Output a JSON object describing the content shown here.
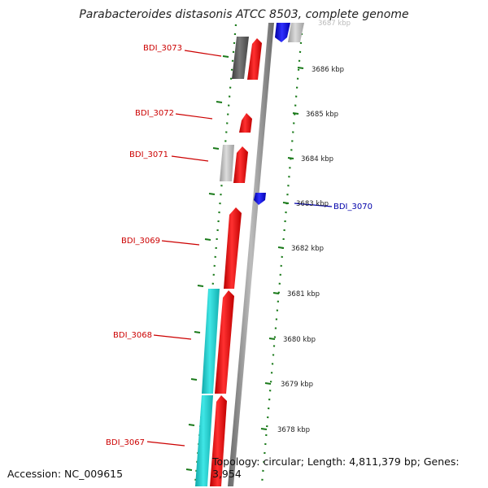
{
  "title": "Parabacteroides distasonis ATCC 8503, complete genome",
  "footer": {
    "accession": "Accession: NC_009615",
    "topology": "Topology: circular; Length: 4,811,379 bp; Genes: 3,954"
  },
  "scale_labels": [
    "3687 kbp",
    "3686 kbp",
    "3685 kbp",
    "3684 kbp",
    "3683 kbp",
    "3682 kbp",
    "3681 kbp",
    "3680 kbp",
    "3679 kbp",
    "3678 kbp"
  ],
  "gene_labels": [
    {
      "name": "BDI_3073",
      "color": "#cc0000"
    },
    {
      "name": "BDI_3072",
      "color": "#cc0000"
    },
    {
      "name": "BDI_3071",
      "color": "#cc0000"
    },
    {
      "name": "BDI_3070",
      "color": "#0000aa"
    },
    {
      "name": "BDI_3069",
      "color": "#cc0000"
    },
    {
      "name": "BDI_3068",
      "color": "#cc0000"
    },
    {
      "name": "BDI_3067",
      "color": "#cc0000"
    }
  ],
  "colors": {
    "forward_gene": "#ee1111",
    "reverse_gene": "#1a1ad9",
    "rna_feature": "#1ec8c8",
    "gray_feature": "#bbbbbb",
    "dark_feature": "#666666",
    "backbone": "#888888",
    "ticks": "#1a7a1a"
  }
}
